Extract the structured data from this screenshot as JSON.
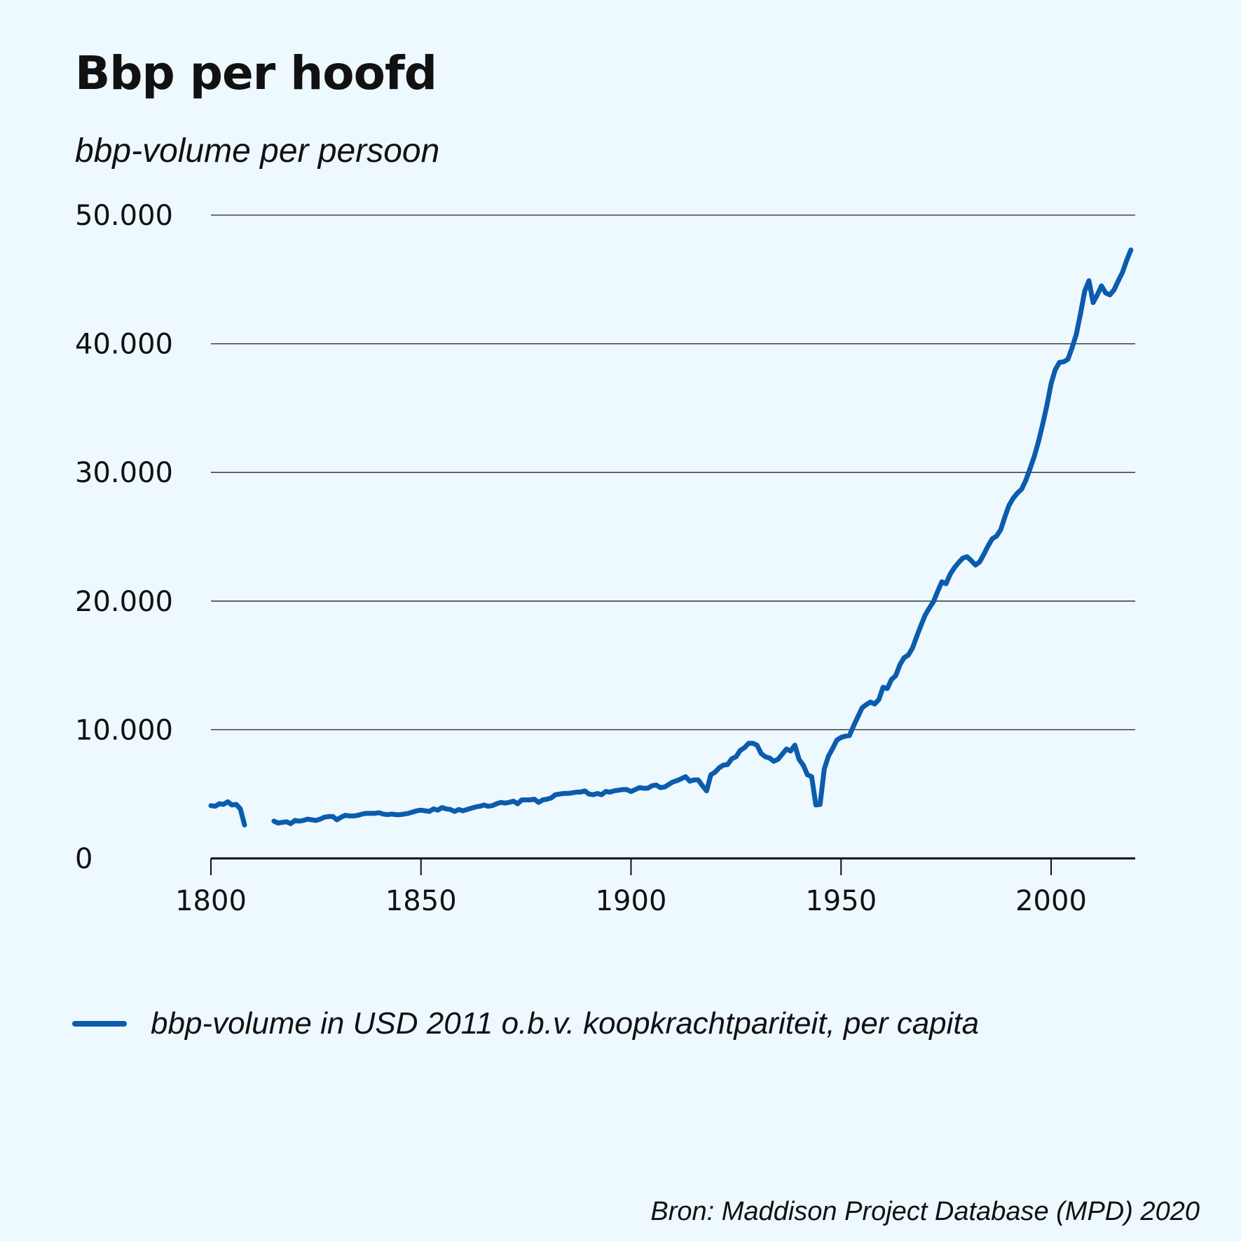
{
  "chart_data": {
    "type": "line",
    "title": "Bbp per hoofd",
    "subtitle": "bbp-volume per persoon",
    "xlabel": "",
    "ylabel": "",
    "xlim": [
      1800,
      2020
    ],
    "ylim": [
      0,
      50000
    ],
    "x_ticks": [
      1800,
      1850,
      1900,
      1950,
      2000
    ],
    "y_ticks": [
      0,
      10000,
      20000,
      30000,
      40000,
      50000
    ],
    "y_tick_labels": [
      "0",
      "10.000",
      "20.000",
      "30.000",
      "40.000",
      "50.000"
    ],
    "grid": "horizontal",
    "legend_position": "bottom-left",
    "series": [
      {
        "name": "bbp-volume in USD 2011 o.b.v. koopkrachtpariteit, per capita",
        "color": "#0b5cad",
        "segments": [
          [
            [
              1800,
              4100
            ],
            [
              1801,
              4050
            ],
            [
              1802,
              4250
            ],
            [
              1803,
              4200
            ],
            [
              1804,
              4400
            ],
            [
              1805,
              4150
            ],
            [
              1806,
              4200
            ],
            [
              1807,
              3850
            ],
            [
              1808,
              2600
            ]
          ],
          [
            [
              1815,
              2900
            ],
            [
              1816,
              2750
            ],
            [
              1817,
              2800
            ],
            [
              1818,
              2850
            ],
            [
              1819,
              2700
            ],
            [
              1820,
              2950
            ],
            [
              1821,
              2900
            ],
            [
              1822,
              2950
            ],
            [
              1823,
              3050
            ],
            [
              1824,
              3000
            ],
            [
              1825,
              2950
            ],
            [
              1826,
              3050
            ],
            [
              1827,
              3200
            ],
            [
              1828,
              3250
            ],
            [
              1829,
              3250
            ],
            [
              1830,
              3000
            ],
            [
              1831,
              3200
            ],
            [
              1832,
              3350
            ],
            [
              1833,
              3300
            ],
            [
              1834,
              3300
            ],
            [
              1835,
              3350
            ],
            [
              1836,
              3450
            ],
            [
              1837,
              3500
            ],
            [
              1838,
              3500
            ],
            [
              1839,
              3500
            ],
            [
              1840,
              3550
            ],
            [
              1841,
              3450
            ],
            [
              1842,
              3400
            ],
            [
              1843,
              3450
            ],
            [
              1844,
              3400
            ],
            [
              1845,
              3400
            ],
            [
              1846,
              3450
            ],
            [
              1847,
              3500
            ],
            [
              1848,
              3600
            ],
            [
              1849,
              3700
            ],
            [
              1850,
              3750
            ],
            [
              1851,
              3700
            ],
            [
              1852,
              3650
            ],
            [
              1853,
              3850
            ],
            [
              1854,
              3750
            ],
            [
              1855,
              3950
            ],
            [
              1856,
              3850
            ],
            [
              1857,
              3800
            ],
            [
              1858,
              3650
            ],
            [
              1859,
              3800
            ],
            [
              1860,
              3700
            ],
            [
              1861,
              3800
            ],
            [
              1862,
              3900
            ],
            [
              1863,
              4000
            ],
            [
              1864,
              4050
            ],
            [
              1865,
              4150
            ],
            [
              1866,
              4050
            ],
            [
              1867,
              4100
            ],
            [
              1868,
              4250
            ],
            [
              1869,
              4350
            ],
            [
              1870,
              4300
            ],
            [
              1871,
              4350
            ],
            [
              1872,
              4450
            ],
            [
              1873,
              4250
            ],
            [
              1874,
              4550
            ],
            [
              1875,
              4550
            ],
            [
              1876,
              4550
            ],
            [
              1877,
              4600
            ],
            [
              1878,
              4350
            ],
            [
              1879,
              4550
            ],
            [
              1880,
              4600
            ],
            [
              1881,
              4700
            ],
            [
              1882,
              4950
            ],
            [
              1883,
              5000
            ],
            [
              1884,
              5050
            ],
            [
              1885,
              5050
            ],
            [
              1886,
              5100
            ],
            [
              1887,
              5150
            ],
            [
              1888,
              5150
            ],
            [
              1889,
              5250
            ],
            [
              1890,
              5000
            ],
            [
              1891,
              4950
            ],
            [
              1892,
              5050
            ],
            [
              1893,
              4950
            ],
            [
              1894,
              5200
            ],
            [
              1895,
              5150
            ],
            [
              1896,
              5250
            ],
            [
              1897,
              5300
            ],
            [
              1898,
              5350
            ],
            [
              1899,
              5350
            ],
            [
              1900,
              5200
            ],
            [
              1901,
              5350
            ],
            [
              1902,
              5500
            ],
            [
              1903,
              5450
            ],
            [
              1904,
              5450
            ],
            [
              1905,
              5650
            ],
            [
              1906,
              5700
            ],
            [
              1907,
              5500
            ],
            [
              1908,
              5550
            ],
            [
              1909,
              5750
            ],
            [
              1910,
              5950
            ],
            [
              1911,
              6050
            ],
            [
              1912,
              6200
            ],
            [
              1913,
              6350
            ],
            [
              1914,
              6000
            ],
            [
              1915,
              6100
            ],
            [
              1916,
              6100
            ],
            [
              1917,
              5650
            ],
            [
              1918,
              5250
            ],
            [
              1919,
              6500
            ],
            [
              1920,
              6700
            ],
            [
              1921,
              7050
            ],
            [
              1922,
              7250
            ],
            [
              1923,
              7300
            ],
            [
              1924,
              7750
            ],
            [
              1925,
              7900
            ],
            [
              1926,
              8400
            ],
            [
              1927,
              8600
            ],
            [
              1928,
              8950
            ],
            [
              1929,
              8950
            ],
            [
              1930,
              8800
            ],
            [
              1931,
              8150
            ],
            [
              1932,
              7900
            ],
            [
              1933,
              7800
            ],
            [
              1934,
              7550
            ],
            [
              1935,
              7700
            ],
            [
              1936,
              8100
            ],
            [
              1937,
              8500
            ],
            [
              1938,
              8350
            ],
            [
              1939,
              8800
            ],
            [
              1940,
              7700
            ],
            [
              1941,
              7250
            ],
            [
              1942,
              6500
            ],
            [
              1943,
              6350
            ],
            [
              1944,
              4150
            ],
            [
              1945,
              4200
            ],
            [
              1946,
              6950
            ],
            [
              1947,
              7950
            ],
            [
              1948,
              8550
            ],
            [
              1949,
              9200
            ],
            [
              1950,
              9400
            ],
            [
              1951,
              9500
            ],
            [
              1952,
              9550
            ],
            [
              1953,
              10300
            ],
            [
              1954,
              11000
            ],
            [
              1955,
              11700
            ],
            [
              1956,
              11950
            ],
            [
              1957,
              12150
            ],
            [
              1958,
              12000
            ],
            [
              1959,
              12350
            ],
            [
              1960,
              13300
            ],
            [
              1961,
              13200
            ],
            [
              1962,
              13900
            ],
            [
              1963,
              14200
            ],
            [
              1964,
              15050
            ],
            [
              1965,
              15600
            ],
            [
              1966,
              15800
            ],
            [
              1967,
              16350
            ],
            [
              1968,
              17250
            ],
            [
              1969,
              18100
            ],
            [
              1970,
              18900
            ],
            [
              1971,
              19450
            ],
            [
              1972,
              19950
            ],
            [
              1973,
              20750
            ],
            [
              1974,
              21500
            ],
            [
              1975,
              21350
            ],
            [
              1976,
              22100
            ],
            [
              1977,
              22600
            ],
            [
              1978,
              23000
            ],
            [
              1979,
              23350
            ],
            [
              1980,
              23450
            ],
            [
              1981,
              23150
            ],
            [
              1982,
              22800
            ],
            [
              1983,
              23050
            ],
            [
              1984,
              23650
            ],
            [
              1985,
              24300
            ],
            [
              1986,
              24850
            ],
            [
              1987,
              25050
            ],
            [
              1988,
              25550
            ],
            [
              1989,
              26550
            ],
            [
              1990,
              27450
            ],
            [
              1991,
              28000
            ],
            [
              1992,
              28400
            ],
            [
              1993,
              28700
            ],
            [
              1994,
              29400
            ],
            [
              1995,
              30300
            ],
            [
              1996,
              31250
            ],
            [
              1997,
              32400
            ],
            [
              1998,
              33750
            ],
            [
              1999,
              35200
            ],
            [
              2000,
              36900
            ],
            [
              2001,
              38000
            ],
            [
              2002,
              38550
            ],
            [
              2003,
              38600
            ],
            [
              2004,
              38800
            ],
            [
              2005,
              39700
            ],
            [
              2006,
              40750
            ],
            [
              2007,
              42350
            ],
            [
              2008,
              44100
            ],
            [
              2009,
              44900
            ],
            [
              2010,
              43200
            ],
            [
              2011,
              43800
            ],
            [
              2012,
              44500
            ],
            [
              2013,
              43950
            ],
            [
              2014,
              43800
            ],
            [
              2015,
              44200
            ],
            [
              2016,
              44900
            ],
            [
              2017,
              45550
            ],
            [
              2018,
              46500
            ],
            [
              2019,
              47300
            ]
          ]
        ]
      }
    ],
    "source": "Bron: Maddison Project Database (MPD) 2020"
  }
}
